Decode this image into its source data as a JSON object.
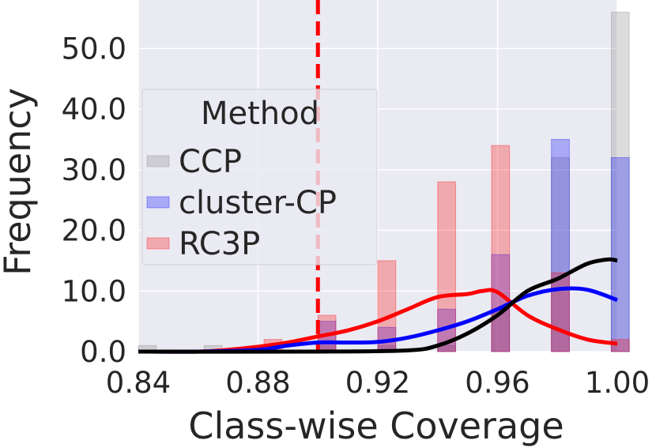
{
  "chart_data": {
    "type": "histogram+kde",
    "xlabel": "Class-wise Coverage",
    "ylabel": "Frequency",
    "xlim": [
      0.84,
      1.0
    ],
    "ylim": [
      0,
      58
    ],
    "x_ticks": [
      "0.84",
      "0.88",
      "0.92",
      "0.96",
      "1.00"
    ],
    "x_tick_values": [
      0.84,
      0.88,
      0.92,
      0.96,
      1.0
    ],
    "y_ticks": [
      "0.0",
      "10.0",
      "20.0",
      "30.0",
      "40.0",
      "50.0"
    ],
    "y_tick_values": [
      0,
      10,
      20,
      30,
      40,
      50
    ],
    "bin_width": 0.006,
    "grid": true,
    "background": "#eaeaf2",
    "reference_line": {
      "x": 0.9,
      "color": "#ff0000",
      "style": "dashed"
    },
    "legend": {
      "title": "Method",
      "position": "center-left"
    },
    "series": [
      {
        "name": "CCP",
        "color": "#808080",
        "hist": [
          {
            "x": 0.84,
            "y": 1
          },
          {
            "x": 0.862,
            "y": 1
          },
          {
            "x": 0.9,
            "y": 1
          },
          {
            "x": 0.92,
            "y": 1
          },
          {
            "x": 0.94,
            "y": 1
          },
          {
            "x": 0.958,
            "y": 7
          },
          {
            "x": 0.978,
            "y": 32
          },
          {
            "x": 0.998,
            "y": 56
          }
        ],
        "kde": [
          [
            0.84,
            0
          ],
          [
            0.9,
            0
          ],
          [
            0.93,
            0.2
          ],
          [
            0.94,
            1
          ],
          [
            0.95,
            3
          ],
          [
            0.96,
            6
          ],
          [
            0.97,
            10
          ],
          [
            0.98,
            12
          ],
          [
            0.99,
            14.5
          ],
          [
            0.997,
            15.2
          ],
          [
            1.0,
            15
          ]
        ]
      },
      {
        "name": "cluster-CP",
        "color": "#0000ff",
        "hist": [
          {
            "x": 0.9,
            "y": 5
          },
          {
            "x": 0.92,
            "y": 4
          },
          {
            "x": 0.94,
            "y": 7
          },
          {
            "x": 0.958,
            "y": 16
          },
          {
            "x": 0.978,
            "y": 35
          },
          {
            "x": 0.998,
            "y": 32
          }
        ],
        "kde": [
          [
            0.84,
            0
          ],
          [
            0.86,
            0
          ],
          [
            0.88,
            0.3
          ],
          [
            0.89,
            1
          ],
          [
            0.9,
            1.5
          ],
          [
            0.91,
            1.5
          ],
          [
            0.92,
            1.6
          ],
          [
            0.93,
            2.3
          ],
          [
            0.94,
            3.5
          ],
          [
            0.95,
            5
          ],
          [
            0.96,
            7
          ],
          [
            0.97,
            9.2
          ],
          [
            0.98,
            10.3
          ],
          [
            0.99,
            10.2
          ],
          [
            1.0,
            8.5
          ]
        ]
      },
      {
        "name": "RC3P",
        "color": "#ff0000",
        "hist": [
          {
            "x": 0.882,
            "y": 2
          },
          {
            "x": 0.9,
            "y": 6
          },
          {
            "x": 0.92,
            "y": 15
          },
          {
            "x": 0.94,
            "y": 28
          },
          {
            "x": 0.958,
            "y": 34
          },
          {
            "x": 0.978,
            "y": 13
          },
          {
            "x": 0.998,
            "y": 2
          }
        ],
        "kde": [
          [
            0.84,
            0
          ],
          [
            0.86,
            0
          ],
          [
            0.87,
            0.3
          ],
          [
            0.88,
            0.8
          ],
          [
            0.89,
            1.5
          ],
          [
            0.9,
            2.5
          ],
          [
            0.91,
            3.5
          ],
          [
            0.92,
            5
          ],
          [
            0.93,
            7
          ],
          [
            0.94,
            9
          ],
          [
            0.95,
            9.5
          ],
          [
            0.955,
            10
          ],
          [
            0.96,
            9.8
          ],
          [
            0.97,
            6
          ],
          [
            0.98,
            3.7
          ],
          [
            0.99,
            2
          ],
          [
            1.0,
            1.3
          ]
        ]
      }
    ]
  }
}
